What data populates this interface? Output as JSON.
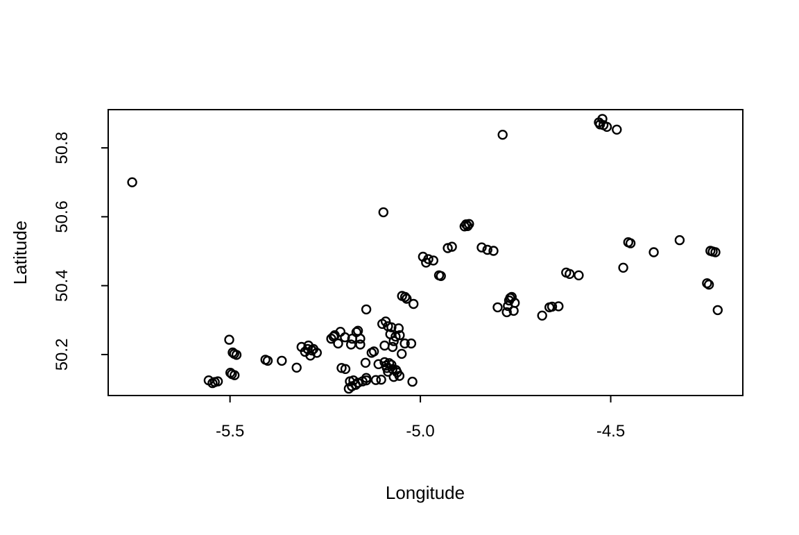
{
  "figure": {
    "background_color": "#ffffff",
    "stroke_color": "#000000"
  },
  "chart_data": {
    "type": "scatter",
    "title": "",
    "xlabel": "Longitude",
    "ylabel": "Latitude",
    "xlim": [
      -5.82,
      -4.153
    ],
    "ylim": [
      50.081,
      50.911
    ],
    "x_ticks": [
      {
        "value": -5.5,
        "label": "-5.5"
      },
      {
        "value": -5.0,
        "label": "-5.0"
      },
      {
        "value": -4.5,
        "label": "-4.5"
      }
    ],
    "y_ticks": [
      {
        "value": 50.2,
        "label": "50.2"
      },
      {
        "value": 50.4,
        "label": "50.4"
      },
      {
        "value": 50.6,
        "label": "50.6"
      },
      {
        "value": 50.8,
        "label": "50.8"
      }
    ],
    "grid": false,
    "legend": null,
    "marker": "open-circle",
    "marker_color": "#000000",
    "points": [
      [
        -5.757,
        50.7
      ],
      [
        -4.784,
        50.838
      ],
      [
        -4.531,
        50.874
      ],
      [
        -4.522,
        50.884
      ],
      [
        -4.519,
        50.866
      ],
      [
        -4.51,
        50.861
      ],
      [
        -4.484,
        50.853
      ],
      [
        -4.528,
        50.868
      ],
      [
        -5.097,
        50.613
      ],
      [
        -4.88,
        50.578
      ],
      [
        -4.876,
        50.573
      ],
      [
        -4.884,
        50.572
      ],
      [
        -4.872,
        50.579
      ],
      [
        -4.993,
        50.484
      ],
      [
        -4.979,
        50.477
      ],
      [
        -4.966,
        50.473
      ],
      [
        -4.985,
        50.467
      ],
      [
        -4.928,
        50.509
      ],
      [
        -4.917,
        50.513
      ],
      [
        -4.839,
        50.511
      ],
      [
        -4.824,
        50.504
      ],
      [
        -4.808,
        50.501
      ],
      [
        -4.951,
        50.43
      ],
      [
        -4.946,
        50.428
      ],
      [
        -5.048,
        50.37
      ],
      [
        -5.04,
        50.367
      ],
      [
        -5.036,
        50.362
      ],
      [
        -5.018,
        50.347
      ],
      [
        -5.142,
        50.331
      ],
      [
        -4.797,
        50.337
      ],
      [
        -4.764,
        50.364
      ],
      [
        -4.76,
        50.367
      ],
      [
        -4.752,
        50.35
      ],
      [
        -4.773,
        50.323
      ],
      [
        -4.755,
        50.327
      ],
      [
        -4.767,
        50.357
      ],
      [
        -4.77,
        50.341
      ],
      [
        -4.467,
        50.452
      ],
      [
        -4.454,
        50.526
      ],
      [
        -4.448,
        50.523
      ],
      [
        -4.387,
        50.497
      ],
      [
        -4.319,
        50.532
      ],
      [
        -4.232,
        50.499
      ],
      [
        -4.225,
        50.497
      ],
      [
        -4.238,
        50.501
      ],
      [
        -4.247,
        50.407
      ],
      [
        -4.242,
        50.403
      ],
      [
        -4.219,
        50.329
      ],
      [
        -4.68,
        50.313
      ],
      [
        -4.654,
        50.339
      ],
      [
        -4.637,
        50.34
      ],
      [
        -4.661,
        50.337
      ],
      [
        -4.608,
        50.434
      ],
      [
        -4.617,
        50.438
      ],
      [
        -4.584,
        50.43
      ],
      [
        -5.091,
        50.296
      ],
      [
        -5.1,
        50.289
      ],
      [
        -5.076,
        50.279
      ],
      [
        -5.057,
        50.276
      ],
      [
        -5.079,
        50.259
      ],
      [
        -5.054,
        50.256
      ],
      [
        -5.07,
        50.239
      ],
      [
        -5.094,
        50.226
      ],
      [
        -5.073,
        50.222
      ],
      [
        -5.085,
        50.282
      ],
      [
        -5.065,
        50.252
      ],
      [
        -5.041,
        50.232
      ],
      [
        -5.024,
        50.232
      ],
      [
        -5.049,
        50.202
      ],
      [
        -5.128,
        50.205
      ],
      [
        -5.122,
        50.209
      ],
      [
        -5.144,
        50.176
      ],
      [
        -5.142,
        50.132
      ],
      [
        -5.117,
        50.126
      ],
      [
        -5.234,
        50.246
      ],
      [
        -5.225,
        50.256
      ],
      [
        -5.21,
        50.266
      ],
      [
        -5.198,
        50.25
      ],
      [
        -5.179,
        50.246
      ],
      [
        -5.164,
        50.269
      ],
      [
        -5.158,
        50.246
      ],
      [
        -5.216,
        50.232
      ],
      [
        -5.182,
        50.229
      ],
      [
        -5.158,
        50.229
      ],
      [
        -5.228,
        50.252
      ],
      [
        -5.168,
        50.265
      ],
      [
        -5.312,
        50.222
      ],
      [
        -5.294,
        50.226
      ],
      [
        -5.281,
        50.216
      ],
      [
        -5.272,
        50.205
      ],
      [
        -5.289,
        50.197
      ],
      [
        -5.303,
        50.208
      ],
      [
        -5.285,
        50.212
      ],
      [
        -5.296,
        50.216
      ],
      [
        -5.207,
        50.161
      ],
      [
        -5.197,
        50.158
      ],
      [
        -5.11,
        50.172
      ],
      [
        -5.094,
        50.178
      ],
      [
        -5.082,
        50.175
      ],
      [
        -5.088,
        50.161
      ],
      [
        -5.073,
        50.158
      ],
      [
        -5.061,
        50.148
      ],
      [
        -5.055,
        50.138
      ],
      [
        -5.07,
        50.135
      ],
      [
        -5.09,
        50.168
      ],
      [
        -5.076,
        50.17
      ],
      [
        -5.064,
        50.155
      ],
      [
        -5.085,
        50.15
      ],
      [
        -5.185,
        50.122
      ],
      [
        -5.176,
        50.125
      ],
      [
        -5.164,
        50.118
      ],
      [
        -5.152,
        50.122
      ],
      [
        -5.142,
        50.125
      ],
      [
        -5.188,
        50.101
      ],
      [
        -5.17,
        50.112
      ],
      [
        -5.18,
        50.108
      ],
      [
        -5.103,
        50.127
      ],
      [
        -5.021,
        50.121
      ],
      [
        -5.556,
        50.125
      ],
      [
        -5.54,
        50.12
      ],
      [
        -5.532,
        50.122
      ],
      [
        -5.546,
        50.117
      ],
      [
        -5.502,
        50.243
      ],
      [
        -5.489,
        50.202
      ],
      [
        -5.483,
        50.199
      ],
      [
        -5.493,
        50.206
      ],
      [
        -5.495,
        50.143
      ],
      [
        -5.488,
        50.14
      ],
      [
        -5.499,
        50.147
      ],
      [
        -5.407,
        50.185
      ],
      [
        -5.401,
        50.182
      ],
      [
        -5.364,
        50.182
      ],
      [
        -5.325,
        50.162
      ]
    ]
  }
}
